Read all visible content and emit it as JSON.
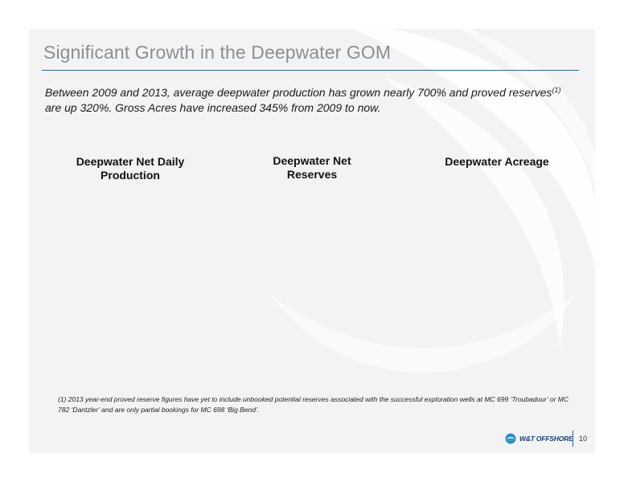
{
  "slide": {
    "title": "Significant Growth in the Deepwater GOM",
    "intro": {
      "before_ref": "Between 2009 and 2013, average deepwater production has grown nearly 700% and proved reserves",
      "ref_mark": "(1)",
      "after_ref": " are up 320%. Gross Acres have increased 345% from 2009 to now."
    },
    "columns": [
      {
        "heading": "Deepwater Net Daily Production"
      },
      {
        "heading": "Deepwater Net Reserves"
      },
      {
        "heading": "Deepwater Acreage"
      }
    ],
    "footnote": "(1) 2013 year-end proved reserve figures have yet to include unbooked potential reserves associated with the successful exploration wells at MC 699 ‘Troubadour’ or MC 782 ‘Dantzler’ and are only partial bookings for MC 698 ‘Big Bend’.",
    "logo": {
      "text": "W&T OFFSHORE",
      "icon": "wt-offshore-logo-icon"
    },
    "page_number": "10"
  },
  "colors": {
    "title": "#8a8f96",
    "rule": "#2e64a8",
    "logo": "#1b3d78",
    "slide_background": "#f3f3f3"
  }
}
